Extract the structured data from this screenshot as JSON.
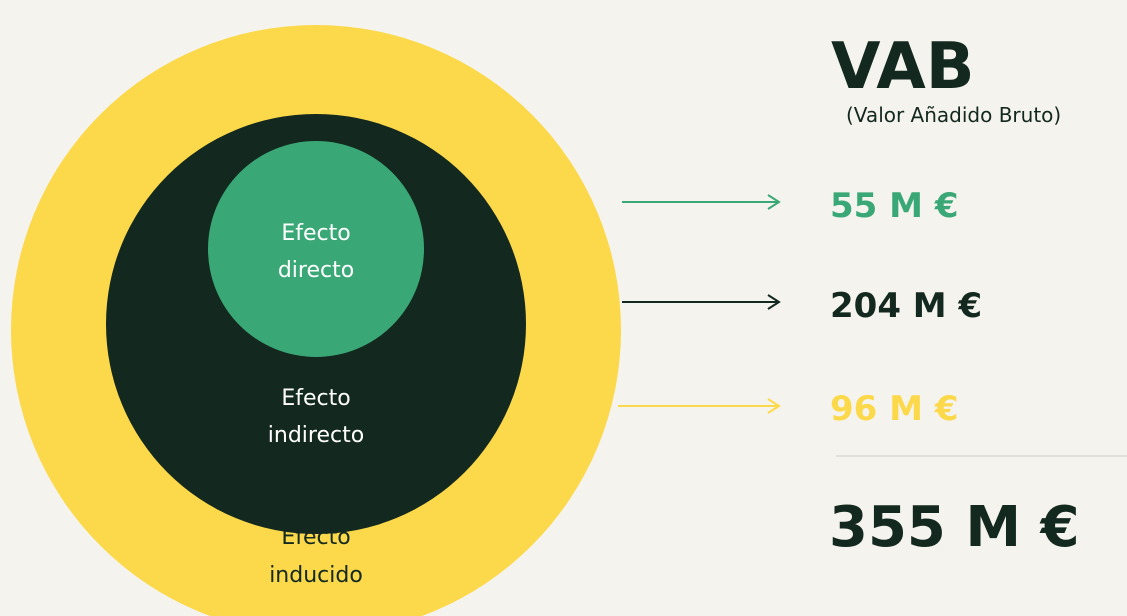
{
  "header": {
    "title": "VAB",
    "subtitle": "(Valor Añadido Bruto)"
  },
  "circles": [
    {
      "label": [
        "Efecto",
        "directo"
      ],
      "value": "55 M €",
      "color": "#3aa876"
    },
    {
      "label": [
        "Efecto",
        "indirecto"
      ],
      "value": "204 M €",
      "color": "#13281e"
    },
    {
      "label": [
        "Efecto",
        "inducido"
      ],
      "value": "96 M €",
      "color": "#fcd94a"
    }
  ],
  "total": "355 M €"
}
